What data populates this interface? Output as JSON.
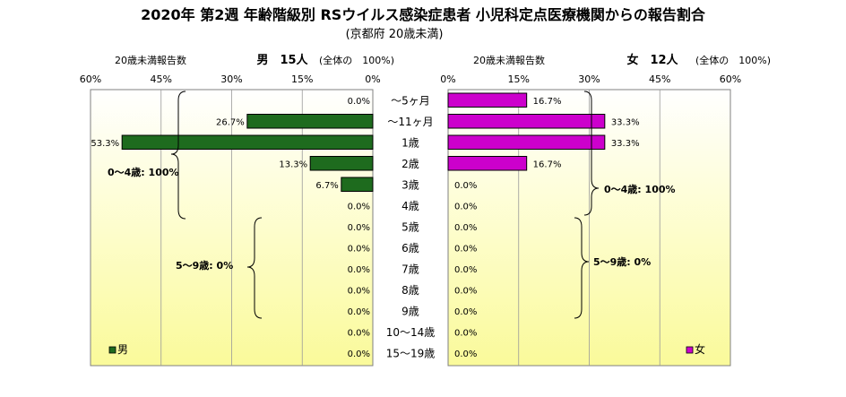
{
  "chart_data": {
    "type": "bar",
    "title": "2020年 第2週 年齢階級別 RSウイルス感染症患者 小児科定点医療機関からの報告割合",
    "subtitle": "(京都府 20歳未満)",
    "categories": [
      "～5ヶ月",
      "～11ヶ月",
      "1歳",
      "2歳",
      "3歳",
      "4歳",
      "5歳",
      "6歳",
      "7歳",
      "8歳",
      "9歳",
      "10～14歳",
      "15～19歳"
    ],
    "xlim": [
      0,
      60
    ],
    "ticks": [
      "60%",
      "45%",
      "30%",
      "15%",
      "0%"
    ],
    "ticks_right": [
      "0%",
      "15%",
      "30%",
      "45%",
      "60%"
    ],
    "left_header": "20歳未満報告数",
    "right_header": "20歳未満報告数",
    "total_note": "(全体の　100%)",
    "series": [
      {
        "name": "男",
        "header": "男　15人",
        "color": "#1e6b1e",
        "values": [
          0.0,
          26.7,
          53.3,
          13.3,
          6.7,
          0.0,
          0.0,
          0.0,
          0.0,
          0.0,
          0.0,
          0.0,
          0.0
        ],
        "labels": [
          "0.0%",
          "26.7%",
          "53.3%",
          "13.3%",
          "6.7%",
          "0.0%",
          "0.0%",
          "0.0%",
          "0.0%",
          "0.0%",
          "0.0%",
          "0.0%",
          "0.0%"
        ]
      },
      {
        "name": "女",
        "header": "女　12人",
        "color": "#cc00cc",
        "values": [
          16.7,
          33.3,
          33.3,
          16.7,
          0.0,
          0.0,
          0.0,
          0.0,
          0.0,
          0.0,
          0.0,
          0.0,
          0.0
        ],
        "labels": [
          "16.7%",
          "33.3%",
          "33.3%",
          "16.7%",
          "0.0%",
          "0.0%",
          "0.0%",
          "0.0%",
          "0.0%",
          "0.0%",
          "0.0%",
          "0.0%",
          "0.0%"
        ]
      }
    ],
    "annotations": {
      "male_0_4": "0～4歳: 100%",
      "male_5_9": "5～9歳: 0%",
      "female_0_4": "0～4歳: 100%",
      "female_5_9": "5～9歳: 0%"
    }
  }
}
